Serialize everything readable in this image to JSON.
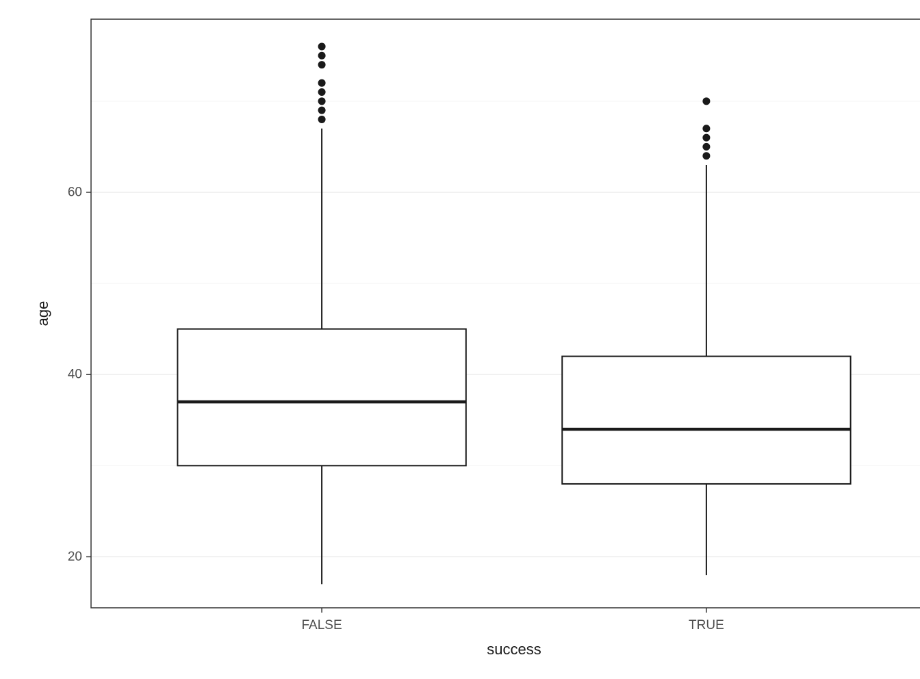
{
  "chart_data": {
    "type": "boxplot",
    "title": "",
    "xlabel": "success",
    "ylabel": "age",
    "categories": [
      "FALSE",
      "TRUE"
    ],
    "ylim": [
      14.4,
      79.0
    ],
    "yticks": [
      20,
      40,
      60
    ],
    "yticks_minor": [
      30,
      50,
      70
    ],
    "grid": true,
    "legend": "none",
    "series": [
      {
        "category": "FALSE",
        "whisker_low": 17,
        "q1": 30,
        "median": 37,
        "q3": 45,
        "whisker_high": 67,
        "outliers": [
          68,
          69,
          70,
          71,
          72,
          74,
          75,
          76
        ]
      },
      {
        "category": "TRUE",
        "whisker_low": 18,
        "q1": 28,
        "median": 34,
        "q3": 42,
        "whisker_high": 63,
        "outliers": [
          64,
          65,
          66,
          67,
          70
        ]
      }
    ],
    "colors": {
      "panel_fill": "#ffffff",
      "box_fill": "#ffffff",
      "box_stroke": "#1a1a1a",
      "grid_major": "#ebebeb",
      "grid_minor": "#f4f4f4",
      "panel_border": "#333333",
      "tick": "#333333",
      "text": "#4d4d4d",
      "title_text": "#1a1a1a"
    }
  }
}
